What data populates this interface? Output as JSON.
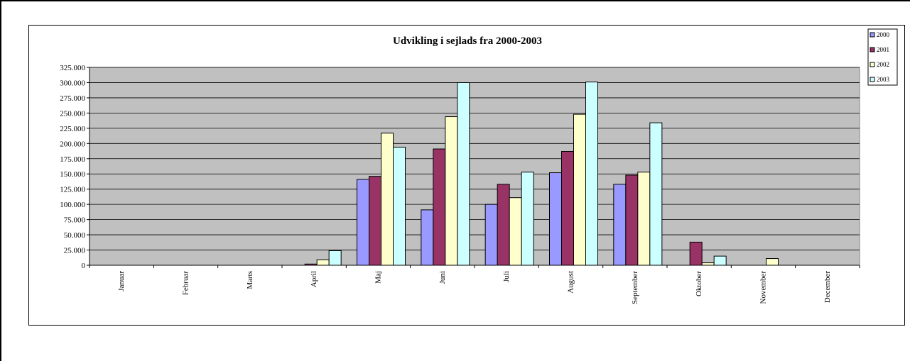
{
  "chart_data": {
    "type": "bar",
    "title": "Udvikling i sejlads fra 2000-2003",
    "categories": [
      "Januar",
      "Februar",
      "Marts",
      "April",
      "Maj",
      "Juni",
      "Juli",
      "August",
      "September",
      "Oktober",
      "November",
      "December"
    ],
    "series": [
      {
        "name": "2000",
        "color": "#9999ff",
        "values": [
          0,
          0,
          0,
          0,
          141000,
          91000,
          100000,
          152000,
          133000,
          0,
          0,
          0
        ]
      },
      {
        "name": "2001",
        "color": "#993366",
        "values": [
          0,
          0,
          0,
          2000,
          146000,
          191000,
          133000,
          187000,
          148000,
          38000,
          0,
          0
        ]
      },
      {
        "name": "2002",
        "color": "#ffffcc",
        "values": [
          0,
          0,
          0,
          9000,
          217000,
          244000,
          111000,
          248000,
          153000,
          4000,
          11000,
          0
        ]
      },
      {
        "name": "2003",
        "color": "#ccffff",
        "values": [
          0,
          0,
          0,
          24000,
          194000,
          300000,
          153000,
          301000,
          234000,
          15000,
          0,
          0
        ]
      }
    ],
    "ylim": [
      0,
      325000
    ],
    "ytick_labels": [
      "0",
      "25.000",
      "50.000",
      "75.000",
      "100.000",
      "125.000",
      "150.000",
      "175.000",
      "200.000",
      "225.000",
      "250.000",
      "275.000",
      "300.000",
      "325.000"
    ],
    "plot_background": "#c0c0c0",
    "grid": true,
    "legend_position": "top-right"
  }
}
